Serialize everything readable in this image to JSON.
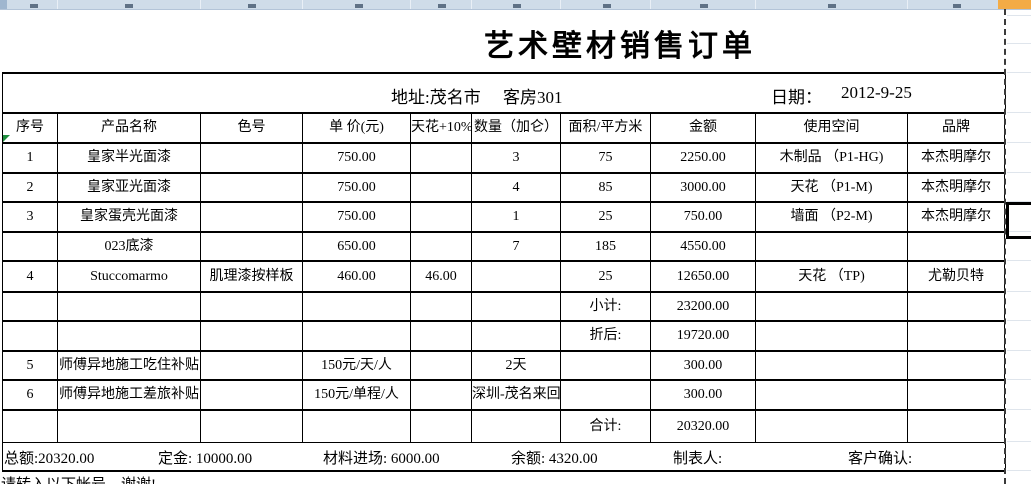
{
  "title": "艺术壁材销售订单",
  "info": {
    "address": "地址:茂名市",
    "room": "客房301",
    "date_label": "日期：",
    "date_value": "2012-9-25"
  },
  "table": {
    "headers": [
      "序号",
      "产品名称",
      "色号",
      "单 价(元)",
      "天花+10%",
      "数量（加仑）",
      "面积/平方米",
      "金额",
      "使用空间",
      "品牌"
    ],
    "rows": [
      [
        "1",
        "皇家半光面漆",
        "",
        "750.00",
        "",
        "3",
        "75",
        "2250.00",
        "木制品 （P1-HG)",
        "本杰明摩尔"
      ],
      [
        "2",
        "皇家亚光面漆",
        "",
        "750.00",
        "",
        "4",
        "85",
        "3000.00",
        "天花 （P1-M)",
        "本杰明摩尔"
      ],
      [
        "3",
        "皇家蛋壳光面漆",
        "",
        "750.00",
        "",
        "1",
        "25",
        "750.00",
        "墙面 （P2-M)",
        "本杰明摩尔"
      ],
      [
        "",
        "023底漆",
        "",
        "650.00",
        "",
        "7",
        "185",
        "4550.00",
        "",
        ""
      ],
      [
        "4",
        "Stuccomarmo",
        "肌理漆按样板",
        "460.00",
        "46.00",
        "",
        "25",
        "12650.00",
        "天花 （TP)",
        "尤勒贝特"
      ],
      [
        "",
        "",
        "",
        "",
        "",
        "",
        "小计:",
        "23200.00",
        "",
        ""
      ],
      [
        "",
        "",
        "",
        "",
        "",
        "",
        "折后:",
        "19720.00",
        "",
        ""
      ],
      [
        "5",
        "师傅异地施工吃住补贴",
        "",
        "150元/天/人",
        "",
        "2天",
        "",
        "300.00",
        "",
        ""
      ],
      [
        "6",
        "师傅异地施工差旅补贴",
        "",
        "150元/单程/人",
        "",
        "深圳-茂名来回",
        "",
        "300.00",
        "",
        ""
      ],
      [
        "",
        "",
        "",
        "",
        "",
        "",
        "合计:",
        "20320.00",
        "",
        ""
      ]
    ]
  },
  "summary": {
    "items": [
      {
        "name": "total-amount",
        "text": "总额:20320.00"
      },
      {
        "name": "deposit-amount",
        "text": "定金: 10000.00"
      },
      {
        "name": "material-entry-amount",
        "text": "材料进场: 6000.00"
      },
      {
        "name": "balance-amount",
        "text": "余额: 4320.00"
      },
      {
        "name": "preparer-label",
        "text": "制表人:"
      },
      {
        "name": "customer-confirm-label",
        "text": "客户确认:"
      }
    ]
  },
  "footer_note": "请转入以下帐号，谢谢!",
  "colors": {
    "strip": "#cfdce9",
    "strip_orange": "#f3ab45",
    "grid_faint": "#dfe5ec",
    "error_green": "#1e8e3e"
  }
}
